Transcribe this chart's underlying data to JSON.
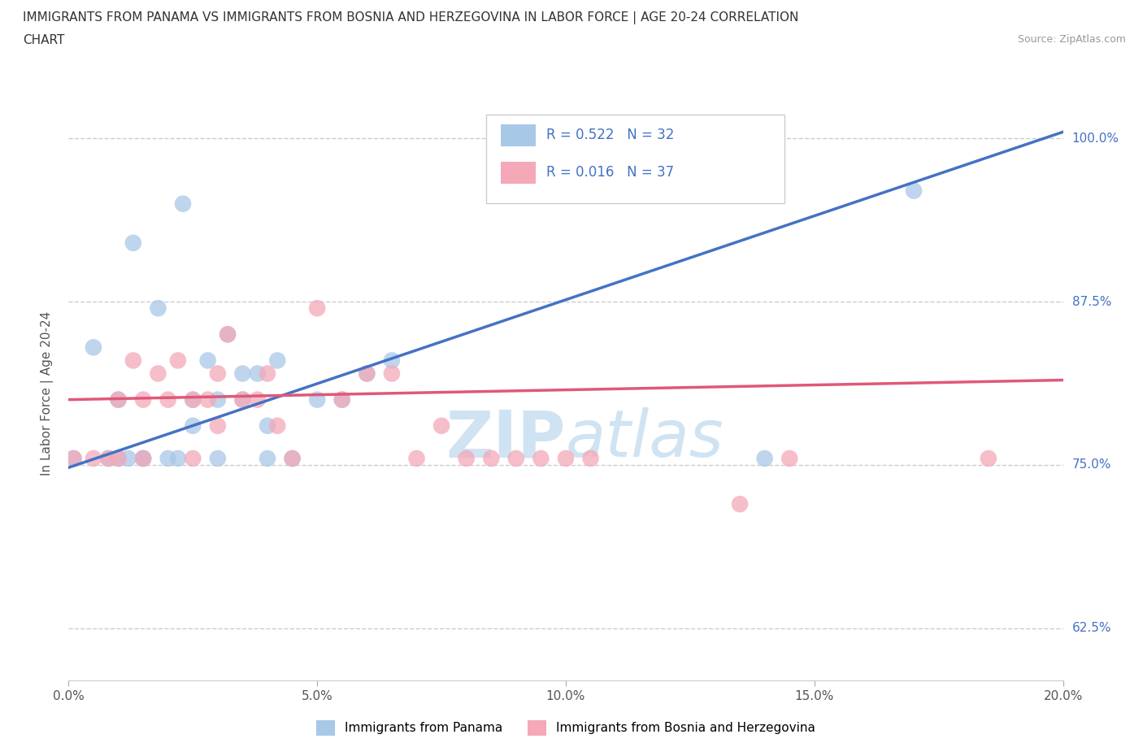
{
  "title_line1": "IMMIGRANTS FROM PANAMA VS IMMIGRANTS FROM BOSNIA AND HERZEGOVINA IN LABOR FORCE | AGE 20-24 CORRELATION",
  "title_line2": "CHART",
  "source_text": "Source: ZipAtlas.com",
  "ylabel": "In Labor Force | Age 20-24",
  "xlim": [
    0.0,
    0.2
  ],
  "ylim": [
    0.585,
    1.025
  ],
  "yticks": [
    0.625,
    0.75,
    0.875,
    1.0
  ],
  "ytick_labels": [
    "62.5%",
    "75.0%",
    "87.5%",
    "100.0%"
  ],
  "xticks": [
    0.0,
    0.05,
    0.1,
    0.15,
    0.2
  ],
  "xtick_labels": [
    "0.0%",
    "5.0%",
    "10.0%",
    "15.0%",
    "20.0%"
  ],
  "R_panama": 0.522,
  "N_panama": 32,
  "R_bosnia": 0.016,
  "N_bosnia": 37,
  "legend_label_panama": "Immigrants from Panama",
  "legend_label_bosnia": "Immigrants from Bosnia and Herzegovina",
  "color_panama": "#a8c8e8",
  "color_bosnia": "#f4a8b8",
  "trendline_color_panama": "#4472c4",
  "trendline_color_bosnia": "#e05878",
  "watermark_color": "#c8dff0",
  "ytick_color": "#4472c4",
  "scatter_panama_x": [
    0.001,
    0.005,
    0.008,
    0.01,
    0.01,
    0.012,
    0.013,
    0.015,
    0.015,
    0.018,
    0.02,
    0.022,
    0.023,
    0.025,
    0.025,
    0.028,
    0.03,
    0.03,
    0.032,
    0.035,
    0.035,
    0.038,
    0.04,
    0.04,
    0.042,
    0.045,
    0.05,
    0.055,
    0.06,
    0.065,
    0.14,
    0.17
  ],
  "scatter_panama_y": [
    0.755,
    0.84,
    0.755,
    0.755,
    0.8,
    0.755,
    0.92,
    0.755,
    0.755,
    0.87,
    0.755,
    0.755,
    0.95,
    0.78,
    0.8,
    0.83,
    0.755,
    0.8,
    0.85,
    0.8,
    0.82,
    0.82,
    0.755,
    0.78,
    0.83,
    0.755,
    0.8,
    0.8,
    0.82,
    0.83,
    0.755,
    0.96
  ],
  "scatter_bosnia_x": [
    0.001,
    0.005,
    0.008,
    0.01,
    0.01,
    0.013,
    0.015,
    0.015,
    0.018,
    0.02,
    0.022,
    0.025,
    0.025,
    0.028,
    0.03,
    0.03,
    0.032,
    0.035,
    0.038,
    0.04,
    0.042,
    0.045,
    0.05,
    0.055,
    0.06,
    0.065,
    0.07,
    0.075,
    0.08,
    0.085,
    0.09,
    0.095,
    0.1,
    0.105,
    0.135,
    0.145,
    0.185
  ],
  "scatter_bosnia_y": [
    0.755,
    0.755,
    0.755,
    0.8,
    0.755,
    0.83,
    0.8,
    0.755,
    0.82,
    0.8,
    0.83,
    0.8,
    0.755,
    0.8,
    0.82,
    0.78,
    0.85,
    0.8,
    0.8,
    0.82,
    0.78,
    0.755,
    0.87,
    0.8,
    0.82,
    0.82,
    0.755,
    0.78,
    0.755,
    0.755,
    0.755,
    0.755,
    0.755,
    0.755,
    0.72,
    0.755,
    0.755
  ],
  "trendline_panama_x0": 0.0,
  "trendline_panama_y0": 0.748,
  "trendline_panama_x1": 0.2,
  "trendline_panama_y1": 1.005,
  "trendline_bosnia_x0": 0.0,
  "trendline_bosnia_y0": 0.8,
  "trendline_bosnia_x1": 0.2,
  "trendline_bosnia_y1": 0.815
}
